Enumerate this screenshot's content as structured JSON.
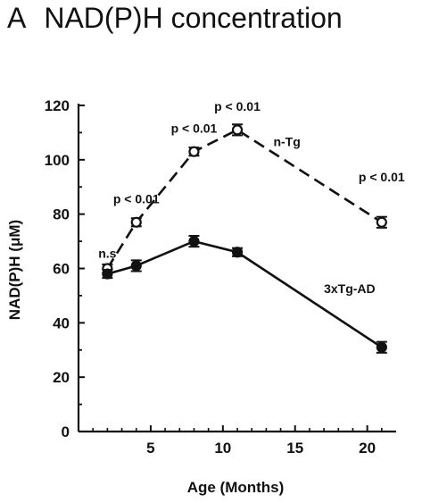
{
  "title": {
    "panel": "A",
    "text": "NAD(P)H concentration"
  },
  "chart_data": {
    "type": "line",
    "title": "NAD(P)H concentration",
    "xlabel": "Age (Months)",
    "ylabel": "NAD(P)H (μM)",
    "xlim": [
      0,
      22
    ],
    "ylim": [
      0,
      120
    ],
    "xticks": [
      5,
      10,
      15,
      20
    ],
    "yticks": [
      0,
      20,
      40,
      60,
      80,
      100,
      120
    ],
    "grid": false,
    "series": [
      {
        "name": "n-Tg",
        "x": [
          2,
          4,
          8,
          11,
          21
        ],
        "y": [
          60,
          77,
          103,
          111,
          77
        ],
        "error": [
          1.5,
          1.5,
          1.5,
          2,
          2
        ],
        "marker": "open-circle",
        "line_style": "dashed"
      },
      {
        "name": "3xTg-AD",
        "x": [
          2,
          4,
          8,
          11,
          21
        ],
        "y": [
          58,
          61,
          70,
          66,
          31
        ],
        "error": [
          1.5,
          2,
          2,
          1.5,
          2
        ],
        "marker": "filled-circle",
        "line_style": "solid"
      }
    ],
    "annotations": [
      {
        "text": "n.s",
        "x": 2,
        "y": 64
      },
      {
        "text": "p < 0.01",
        "x": 4,
        "y": 84
      },
      {
        "text": "p < 0.01",
        "x": 8,
        "y": 110
      },
      {
        "text": "p < 0.01",
        "x": 11,
        "y": 118
      },
      {
        "text": "p < 0.01",
        "x": 21,
        "y": 92
      }
    ],
    "series_labels": [
      {
        "series": "n-Tg",
        "x": 13.5,
        "y": 105
      },
      {
        "series": "3xTg-AD",
        "x": 17,
        "y": 51
      }
    ]
  }
}
